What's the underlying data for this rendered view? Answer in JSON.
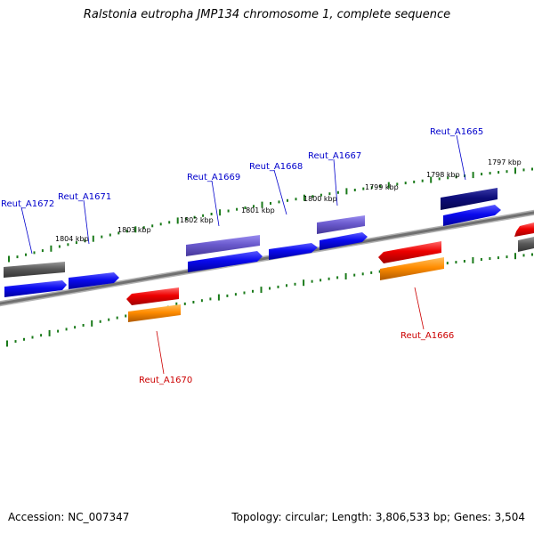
{
  "title": "Ralstonia eutropha JMP134 chromosome 1, complete sequence",
  "accession": "Accession: NC_007347",
  "summary": "Topology: circular; Length: 3,806,533 bp; Genes: 3,504",
  "colors": {
    "backbone": "#808080",
    "ruler_tick": "#1a7a1a",
    "label_forward": "#0000cc",
    "label_reverse": "#cc0000",
    "feature_blue": "#0a0aee",
    "feature_navy": "#0d0d7a",
    "feature_purple": "#6a5acd",
    "feature_gray": "#5a5a5a",
    "feature_red": "#ee0000",
    "feature_orange": "#ff8c00"
  },
  "ruler_labels": [
    "1804 kbp",
    "1803 kbp",
    "1802 kbp",
    "1801 kbp",
    "1800 kbp",
    "1799 kbp",
    "1798 kbp",
    "1797 kbp"
  ],
  "gene_labels": [
    {
      "name": "Reut_A1672",
      "strand": "forward"
    },
    {
      "name": "Reut_A1671",
      "strand": "forward"
    },
    {
      "name": "Reut_A1669",
      "strand": "forward"
    },
    {
      "name": "Reut_A1668",
      "strand": "forward"
    },
    {
      "name": "Reut_A1667",
      "strand": "forward"
    },
    {
      "name": "Reut_A1665",
      "strand": "forward"
    },
    {
      "name": "Reut_A1670",
      "strand": "reverse"
    },
    {
      "name": "Reut_A1666",
      "strand": "reverse"
    }
  ]
}
